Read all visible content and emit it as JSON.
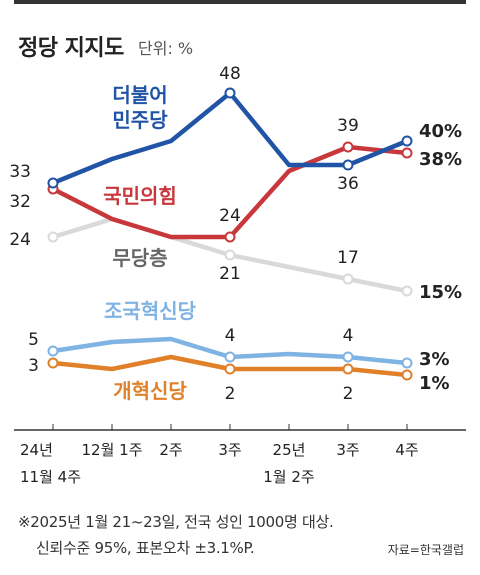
{
  "header": {
    "title": "정당 지지도",
    "unit": "단위: %"
  },
  "notes": [
    "※2025년 1월 21~23일, 전국 성인 1000명 대상.",
    "신뢰수준 95%, 표본오차 ±3.1%P."
  ],
  "source": "자료=한국갤럽",
  "chart_data": {
    "type": "line",
    "title": "정당 지지도",
    "unit": "%",
    "x_labels": [
      [
        "24년",
        "11월 4주"
      ],
      [
        "12월 1주"
      ],
      [
        "2주"
      ],
      [
        "3주"
      ],
      [
        "25년",
        "1월 2주"
      ],
      [
        "3주"
      ],
      [
        "4주"
      ]
    ],
    "x_positions": [
      1,
      2,
      3,
      4,
      5,
      6,
      7
    ],
    "series": [
      {
        "name": "더불어 민주당",
        "label_lines": [
          "더불어",
          "민주당"
        ],
        "color": "#2154a6",
        "group": "top",
        "x": [
          1,
          2,
          3,
          4,
          5,
          6,
          7
        ],
        "values": [
          33,
          37,
          40,
          48,
          36,
          36,
          40
        ],
        "labeled": [
          [
            1,
            "33"
          ],
          [
            4,
            "48"
          ],
          [
            6,
            "36"
          ],
          [
            7,
            "40%"
          ]
        ]
      },
      {
        "name": "국민의힘",
        "label_lines": [
          "국민의힘"
        ],
        "color": "#c8373b",
        "group": "top",
        "x": [
          1,
          2,
          3,
          4,
          5,
          6,
          7
        ],
        "values": [
          32,
          27,
          24,
          24,
          35,
          39,
          38
        ],
        "labeled": [
          [
            1,
            "32"
          ],
          [
            4,
            "24"
          ],
          [
            6,
            "39"
          ],
          [
            7,
            "38%"
          ]
        ]
      },
      {
        "name": "무당층",
        "label_lines": [
          "무당층"
        ],
        "color": "#d9d9d9",
        "group": "top",
        "x": [
          1,
          2,
          3,
          4,
          5,
          6,
          7
        ],
        "values": [
          24,
          27,
          24,
          21,
          19,
          17,
          15
        ],
        "labeled": [
          [
            1,
            "24"
          ],
          [
            4,
            "21"
          ],
          [
            6,
            "17"
          ],
          [
            7,
            "15%"
          ]
        ]
      },
      {
        "name": "조국혁신당",
        "label_lines": [
          "조국혁신당"
        ],
        "color": "#7fb3e3",
        "group": "bottom",
        "x": [
          1,
          2,
          3,
          4,
          5,
          6,
          7
        ],
        "values": [
          5,
          6.5,
          7,
          4,
          4.5,
          4,
          3
        ],
        "labeled": [
          [
            1,
            "5"
          ],
          [
            4,
            "4"
          ],
          [
            6,
            "4"
          ],
          [
            7,
            "3%"
          ]
        ]
      },
      {
        "name": "개혁신당",
        "label_lines": [
          "개혁신당"
        ],
        "color": "#e0812a",
        "group": "bottom",
        "x": [
          1,
          2,
          3,
          4,
          5,
          6,
          7
        ],
        "values": [
          3,
          2,
          4,
          2,
          2,
          2,
          1
        ],
        "labeled": [
          [
            1,
            "3"
          ],
          [
            4,
            "2"
          ],
          [
            6,
            "2"
          ],
          [
            7,
            "1%"
          ]
        ]
      }
    ]
  }
}
